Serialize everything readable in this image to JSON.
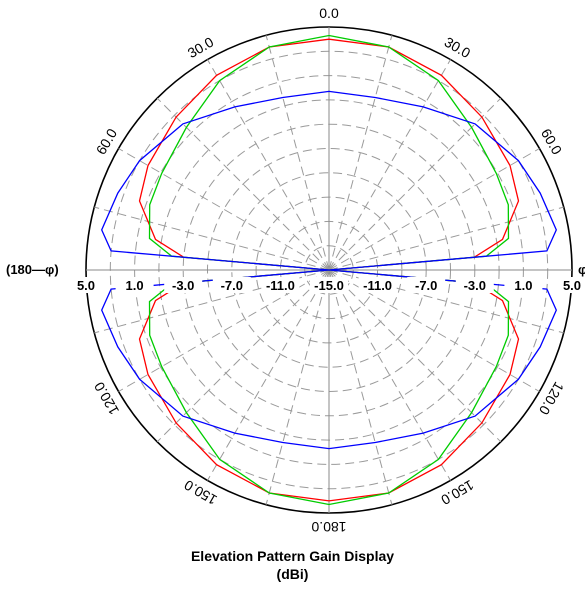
{
  "chart_data": {
    "type": "polar",
    "title": "Elevation Pattern Gain Display",
    "units": "(dBi)",
    "left_axis_label": "(180—φ)",
    "right_axis_label": "φ",
    "radial_ticks": [
      "5.0",
      "1.0",
      "-3.0",
      "-7.0",
      "-11.0",
      "-15.0",
      "-11.0",
      "-7.0",
      "-3.0",
      "1.0",
      "5.0"
    ],
    "angle_labels": {
      "top": "0.0",
      "upper_right": "30.0",
      "right_upper": "60.0",
      "lower_right": "120.0",
      "bottom_right": "150.0",
      "bottom": "180.0",
      "bottom_left": "150.0",
      "lower_left": "120.0",
      "left_upper": "60.0",
      "upper_left": "30.0"
    },
    "radial_range": [
      -15,
      5
    ],
    "series": [
      {
        "color": "#ff0000",
        "angles_deg": [
          0,
          15,
          30,
          45,
          60,
          70,
          80,
          85,
          90,
          95,
          100,
          110,
          120,
          135,
          150,
          165,
          180
        ],
        "gain_dbi": [
          4.0,
          4.0,
          3.5,
          2.8,
          2.2,
          1.6,
          -0.5,
          -3.0,
          -15.0,
          -3.0,
          -0.5,
          1.6,
          2.2,
          2.8,
          3.5,
          4.0,
          4.0
        ]
      },
      {
        "color": "#00cc00",
        "angles_deg": [
          0,
          15,
          30,
          45,
          60,
          70,
          80,
          85,
          90,
          95,
          100,
          110,
          120,
          135,
          150,
          165,
          180
        ],
        "gain_dbi": [
          4.3,
          4.0,
          3.0,
          1.6,
          0.9,
          0.7,
          0.0,
          -2.0,
          -15.0,
          -2.0,
          0.0,
          0.7,
          0.9,
          1.6,
          3.0,
          4.0,
          4.3
        ]
      },
      {
        "color": "#0000ff",
        "angles_deg": [
          0,
          15,
          30,
          45,
          60,
          70,
          80,
          85,
          90,
          95,
          100,
          110,
          120,
          135,
          150,
          165,
          180
        ],
        "gain_dbi": [
          -0.3,
          -0.3,
          0.5,
          2.0,
          3.0,
          3.5,
          4.0,
          3.0,
          -15.0,
          3.0,
          4.0,
          3.5,
          3.0,
          2.0,
          0.5,
          -0.3,
          -0.3
        ]
      }
    ]
  }
}
